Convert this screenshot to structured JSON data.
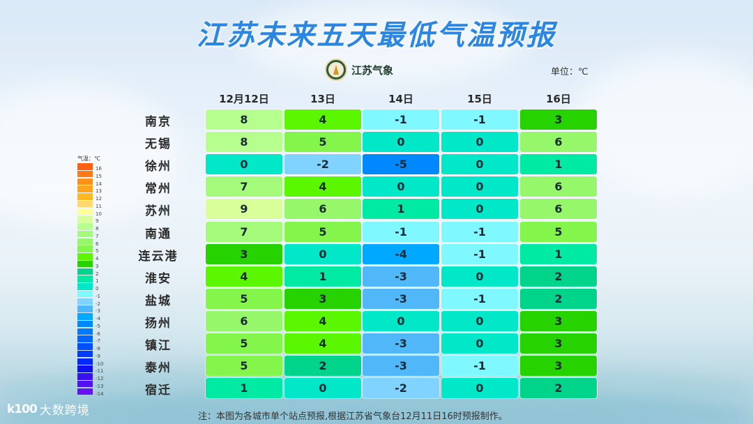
{
  "title": "江苏未来五天最低气温预报",
  "brand": {
    "name": "江苏气象",
    "logo_icon": "jiangsu-meteorology-emblem-icon"
  },
  "unit_label": "单位：℃",
  "columns": [
    "12月12日",
    "13日",
    "14日",
    "15日",
    "16日"
  ],
  "rows": [
    {
      "city": "南京",
      "values": [
        "8",
        "4",
        "-1",
        "-1",
        "3"
      ]
    },
    {
      "city": "无锡",
      "values": [
        "8",
        "5",
        "0",
        "0",
        "6"
      ]
    },
    {
      "city": "徐州",
      "values": [
        "0",
        "-2",
        "-5",
        "0",
        "1"
      ]
    },
    {
      "city": "常州",
      "values": [
        "7",
        "4",
        "0",
        "0",
        "6"
      ]
    },
    {
      "city": "苏州",
      "values": [
        "9",
        "6",
        "1",
        "0",
        "6"
      ]
    },
    {
      "city": "南通",
      "values": [
        "7",
        "5",
        "-1",
        "-1",
        "5"
      ]
    },
    {
      "city": "连云港",
      "values": [
        "3",
        "0",
        "-4",
        "-1",
        "1"
      ]
    },
    {
      "city": "淮安",
      "values": [
        "4",
        "1",
        "-3",
        "0",
        "2"
      ]
    },
    {
      "city": "盐城",
      "values": [
        "5",
        "3",
        "-3",
        "-1",
        "2"
      ]
    },
    {
      "city": "扬州",
      "values": [
        "6",
        "4",
        "0",
        "0",
        "3"
      ]
    },
    {
      "city": "镇江",
      "values": [
        "5",
        "4",
        "-3",
        "0",
        "3"
      ]
    },
    {
      "city": "泰州",
      "values": [
        "5",
        "2",
        "-3",
        "-1",
        "3"
      ]
    },
    {
      "city": "宿迁",
      "values": [
        "1",
        "0",
        "-2",
        "0",
        "2"
      ]
    }
  ],
  "legend": {
    "title": "气温：℃",
    "items": [
      {
        "label": "16",
        "color": "#ff6010"
      },
      {
        "label": "15",
        "color": "#ff7a14"
      },
      {
        "label": "14",
        "color": "#ff9018"
      },
      {
        "label": "13",
        "color": "#ffa41c"
      },
      {
        "label": "12",
        "color": "#ffb820"
      },
      {
        "label": "11",
        "color": "#ffd870"
      },
      {
        "label": "10",
        "color": "#ffff9a"
      },
      {
        "label": "9",
        "color": "#d8ff9a"
      },
      {
        "label": "8",
        "color": "#b6ff8e"
      },
      {
        "label": "7",
        "color": "#a4fa7a"
      },
      {
        "label": "6",
        "color": "#96f76a"
      },
      {
        "label": "5",
        "color": "#84f54a"
      },
      {
        "label": "4",
        "color": "#5af700"
      },
      {
        "label": "3",
        "color": "#26d200"
      },
      {
        "label": "2",
        "color": "#00d48a"
      },
      {
        "label": "1",
        "color": "#00eaa4"
      },
      {
        "label": "0",
        "color": "#00e8c8"
      },
      {
        "label": "-1",
        "color": "#80f8ff"
      },
      {
        "label": "-2",
        "color": "#80d2ff"
      },
      {
        "label": "-3",
        "color": "#50b8f8"
      },
      {
        "label": "-4",
        "color": "#00a8ff"
      },
      {
        "label": "-5",
        "color": "#0088ff"
      },
      {
        "label": "-6",
        "color": "#0078ff"
      },
      {
        "label": "-7",
        "color": "#0064ff"
      },
      {
        "label": "-8",
        "color": "#0050ff"
      },
      {
        "label": "-9",
        "color": "#003cff"
      },
      {
        "label": "-10",
        "color": "#0028ff"
      },
      {
        "label": "-11",
        "color": "#1010f0"
      },
      {
        "label": "-12",
        "color": "#3a10f0"
      },
      {
        "label": "-13",
        "color": "#5010f0"
      },
      {
        "label": "-14",
        "color": "#6a10f5"
      }
    ]
  },
  "watermark": {
    "logo": "k100",
    "text": "大数跨境"
  },
  "note": "注：本图为各城市单个站点预报,根据江苏省气象台12月11日16时预报制作。"
}
